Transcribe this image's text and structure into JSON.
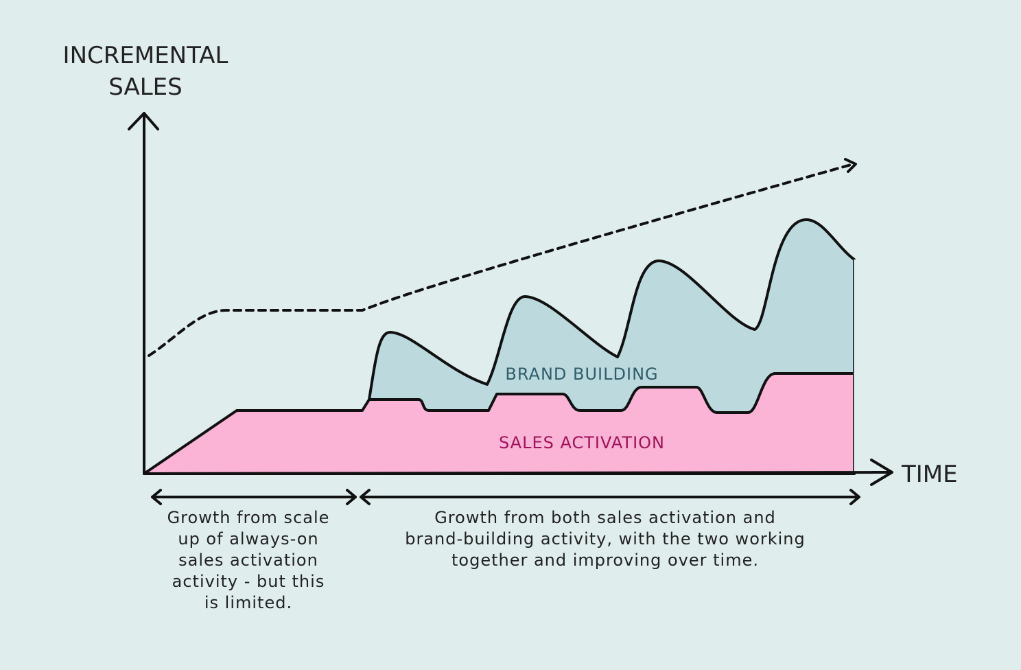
{
  "y_axis_label": {
    "lines": [
      "INCREMENTAL",
      "SALES"
    ]
  },
  "x_axis_label": "TIME",
  "areas": {
    "brand_building": "BRAND BUILDING",
    "sales_activation": "SALES ACTIVATION"
  },
  "annotations": {
    "left": {
      "lines": [
        "Growth from scale",
        "up of always-on",
        "sales activation",
        "activity - but this",
        "is limited."
      ]
    },
    "right": {
      "lines": [
        "Growth from both sales activation and",
        "brand-building activity, with the two working",
        "together and improving over time."
      ]
    }
  }
}
